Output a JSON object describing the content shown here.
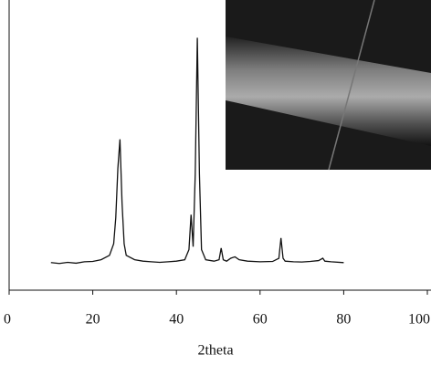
{
  "chart_data": {
    "type": "line",
    "x_label": "2theta",
    "x": [
      10,
      12,
      14,
      16,
      18,
      20,
      22,
      24,
      25,
      25.5,
      26,
      26.5,
      27,
      27.5,
      28,
      30,
      32,
      34,
      36,
      38,
      40,
      42,
      43,
      43.5,
      44,
      44.5,
      45,
      45.5,
      46,
      47,
      49,
      50.2,
      50.7,
      51.2,
      52,
      53,
      54,
      55,
      57,
      60,
      63,
      64.5,
      65,
      65.5,
      66,
      68,
      70,
      72,
      74,
      75,
      75.5,
      77,
      80
    ],
    "series": [
      {
        "color": "#111111",
        "values": [
          9.5,
          9.2,
          9.6,
          9.3,
          9.8,
          9.9,
          10.5,
          12,
          16,
          25,
          42,
          52,
          30,
          16,
          12,
          10.5,
          10,
          9.8,
          9.6,
          9.8,
          10,
          10.5,
          14,
          26,
          15,
          40,
          87,
          40,
          14,
          10.5,
          10,
          10.5,
          14.5,
          10.5,
          10,
          11,
          11.5,
          10.5,
          10,
          9.8,
          9.9,
          11,
          18,
          11,
          10,
          9.8,
          9.7,
          9.9,
          10.2,
          11,
          10,
          9.8,
          9.5
        ]
      }
    ],
    "xlim": [
      0,
      100
    ],
    "xticks": [
      0,
      20,
      40,
      60,
      80,
      100
    ],
    "ylim": [
      0,
      100
    ]
  }
}
